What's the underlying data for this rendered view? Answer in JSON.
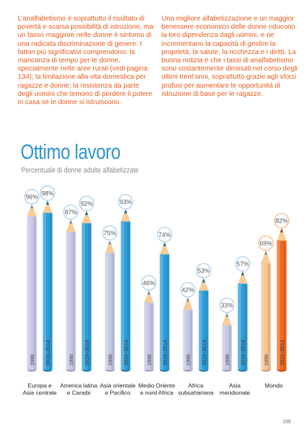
{
  "text": {
    "left": "L’analfabetismo è soprattutto il risultato di povertà e scarsa possibilità di istruzione, ma un tasso maggiore nelle donne è sintomo di una radicata discriminazione di genere. I fattori più significativi comprendono: la mancanza di tempo per le donne, specialmente nelle aree rurali (vedi pagina 134); la limitazione alla vita domestica per ragazze e donne; la resistenza da parte degli uomini che temono di perdere il potere in casa se le donne si istruiscono.",
    "right": "Una migliore alfabetizzazione e un maggior benessere economico delle donne riducono la loro dipendenza dagli uomini, e ne incrementano la capacità di gestire la proprietà, la salute, la ricchezza e i diritti. La buona notizia è che i tassi di analfabetismo sono costantemente diminuiti nel corso degli ultimi trent’anni, soprattutto grazie agli sforzi profusi per aumentare le opportunità di istruzione di base per le ragazze."
  },
  "page_number": "155",
  "chart_data": {
    "type": "bar",
    "title": "Ottimo lavoro",
    "subtitle": "Percentuale di donne adulte alfabetizzate",
    "categories": [
      [
        "Europa e",
        "Asia centrale"
      ],
      [
        "America latina",
        "e Caraibi"
      ],
      [
        "Asia orientale",
        "e Pacifico"
      ],
      [
        "Medio Oriente",
        "e nord Africa"
      ],
      [
        "Africa",
        "subsahariana"
      ],
      [
        "Asia",
        "meridionale"
      ],
      [
        "Mondo"
      ]
    ],
    "series": [
      {
        "name": "1990",
        "values": [
          96,
          87,
          75,
          46,
          42,
          33,
          69
        ]
      },
      {
        "name": "2010–2014",
        "values": [
          98,
          92,
          93,
          74,
          53,
          57,
          82
        ]
      }
    ],
    "value_suffix": "%",
    "ylim": [
      0,
      100
    ],
    "colors": {
      "old": "#c6c8e6",
      "new": "#2e9ed9",
      "world_old": "#f8c391",
      "world_new": "#ee6a1e",
      "tip": "#f7cd97",
      "label_ring": "#a9ccea",
      "world_ring": "#f3b37b"
    }
  }
}
